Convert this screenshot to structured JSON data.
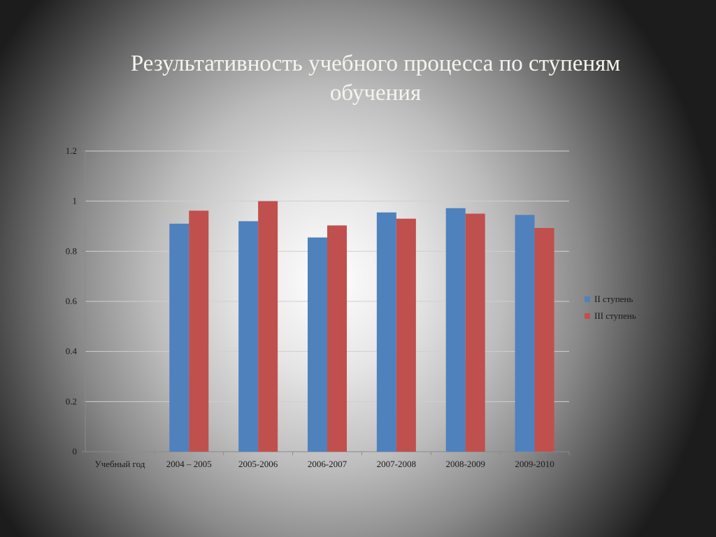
{
  "slide": {
    "title_line1": "Результативность учебного процесса по ступеням",
    "title_line2": "обучения"
  },
  "chart_data": {
    "type": "bar",
    "categories": [
      "Учебный год",
      "2004 – 2005",
      "2005-2006",
      "2006-2007",
      "2007-2008",
      "2008-2009",
      "2009-2010"
    ],
    "series": [
      {
        "name": "II ступень",
        "color": "#4f81bd",
        "values": [
          null,
          0.91,
          0.92,
          0.855,
          0.955,
          0.972,
          0.945
        ]
      },
      {
        "name": "III ступень",
        "color": "#c0504d",
        "values": [
          null,
          0.962,
          1.0,
          0.903,
          0.93,
          0.95,
          0.893
        ]
      }
    ],
    "ylim": [
      0,
      1.2
    ],
    "yticks": [
      0,
      0.2,
      0.4,
      0.6,
      0.8,
      1,
      1.2
    ],
    "ytick_labels": [
      "0",
      "0.2",
      "0.4",
      "0.6",
      "0.8",
      "1",
      "1.2"
    ],
    "grid": true,
    "legend_position": "right",
    "title": "",
    "xlabel": "",
    "ylabel": ""
  }
}
